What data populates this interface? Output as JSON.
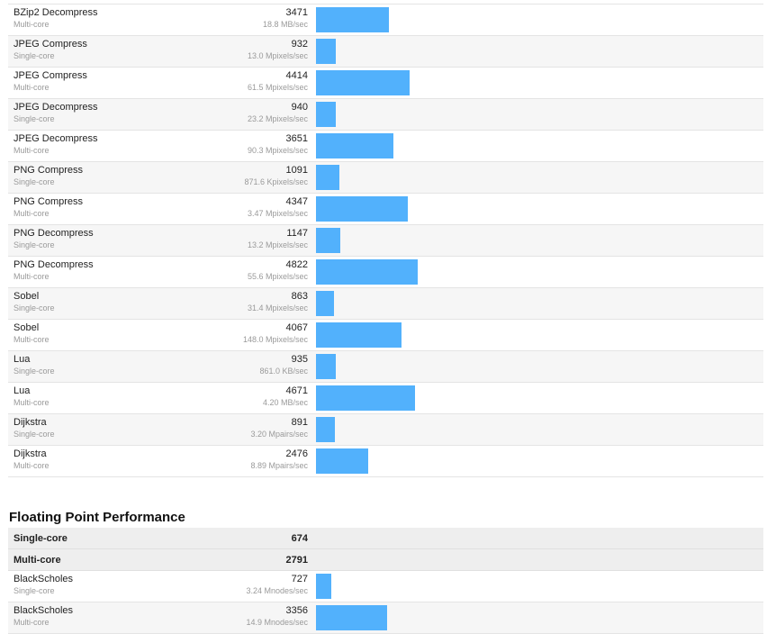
{
  "colors": {
    "bar": "#52b1fc",
    "alt_row": "#f6f6f6",
    "summary_row": "#eeeeee"
  },
  "integer_rows": [
    {
      "name": "BZip2 Decompress",
      "core": "Multi-core",
      "score": "3471",
      "rate": "18.8 MB/sec",
      "value": 3471
    },
    {
      "name": "JPEG Compress",
      "core": "Single-core",
      "score": "932",
      "rate": "13.0 Mpixels/sec",
      "value": 932
    },
    {
      "name": "JPEG Compress",
      "core": "Multi-core",
      "score": "4414",
      "rate": "61.5 Mpixels/sec",
      "value": 4414
    },
    {
      "name": "JPEG Decompress",
      "core": "Single-core",
      "score": "940",
      "rate": "23.2 Mpixels/sec",
      "value": 940
    },
    {
      "name": "JPEG Decompress",
      "core": "Multi-core",
      "score": "3651",
      "rate": "90.3 Mpixels/sec",
      "value": 3651
    },
    {
      "name": "PNG Compress",
      "core": "Single-core",
      "score": "1091",
      "rate": "871.6 Kpixels/sec",
      "value": 1091
    },
    {
      "name": "PNG Compress",
      "core": "Multi-core",
      "score": "4347",
      "rate": "3.47 Mpixels/sec",
      "value": 4347
    },
    {
      "name": "PNG Decompress",
      "core": "Single-core",
      "score": "1147",
      "rate": "13.2 Mpixels/sec",
      "value": 1147
    },
    {
      "name": "PNG Decompress",
      "core": "Multi-core",
      "score": "4822",
      "rate": "55.6 Mpixels/sec",
      "value": 4822
    },
    {
      "name": "Sobel",
      "core": "Single-core",
      "score": "863",
      "rate": "31.4 Mpixels/sec",
      "value": 863
    },
    {
      "name": "Sobel",
      "core": "Multi-core",
      "score": "4067",
      "rate": "148.0 Mpixels/sec",
      "value": 4067
    },
    {
      "name": "Lua",
      "core": "Single-core",
      "score": "935",
      "rate": "861.0 KB/sec",
      "value": 935
    },
    {
      "name": "Lua",
      "core": "Multi-core",
      "score": "4671",
      "rate": "4.20 MB/sec",
      "value": 4671
    },
    {
      "name": "Dijkstra",
      "core": "Single-core",
      "score": "891",
      "rate": "3.20 Mpairs/sec",
      "value": 891
    },
    {
      "name": "Dijkstra",
      "core": "Multi-core",
      "score": "2476",
      "rate": "8.89 Mpairs/sec",
      "value": 2476
    }
  ],
  "floating_point": {
    "title": "Floating Point Performance",
    "summary": [
      {
        "label": "Single-core",
        "score": "674"
      },
      {
        "label": "Multi-core",
        "score": "2791"
      }
    ],
    "rows": [
      {
        "name": "BlackScholes",
        "core": "Single-core",
        "score": "727",
        "rate": "3.24 Mnodes/sec",
        "value": 727
      },
      {
        "name": "BlackScholes",
        "core": "Multi-core",
        "score": "3356",
        "rate": "14.9 Mnodes/sec",
        "value": 3356
      }
    ]
  },
  "bar_scale_max": 11500
}
